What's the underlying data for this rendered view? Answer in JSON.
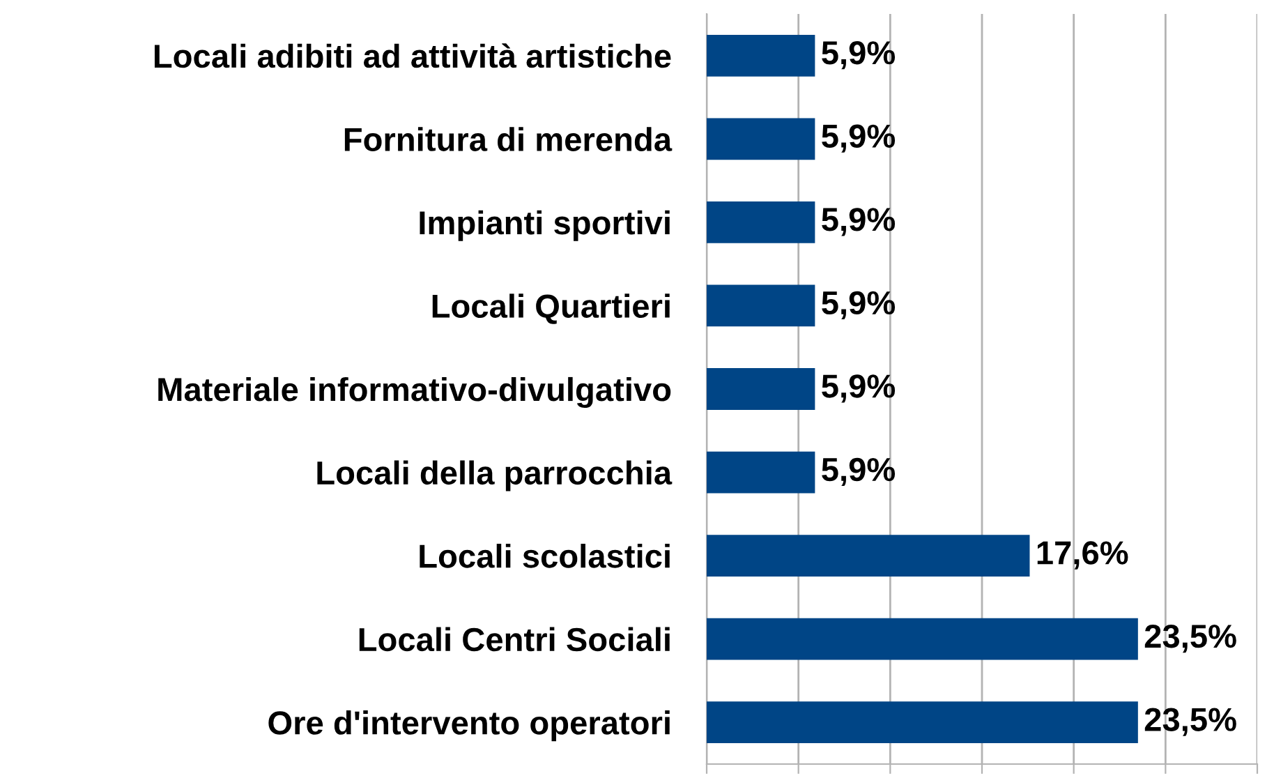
{
  "chart_data": {
    "type": "bar",
    "orientation": "horizontal",
    "categories": [
      "Locali adibiti ad attività artistiche",
      "Fornitura di merenda",
      "Impianti sportivi",
      "Locali Quartieri",
      "Materiale informativo-divulgativo",
      "Locali della parrocchia",
      "Locali scolastici",
      "Locali Centri Sociali",
      "Ore d'intervento operatori"
    ],
    "values": [
      5.9,
      5.9,
      5.9,
      5.9,
      5.9,
      5.9,
      17.6,
      23.5,
      23.5
    ],
    "value_labels": [
      "5,9%",
      "5,9%",
      "5,9%",
      "5,9%",
      "5,9%",
      "5,9%",
      "17,6%",
      "23,5%",
      "23,5%"
    ],
    "color": "#004586",
    "xlim": [
      0,
      30
    ],
    "xticks": [
      {
        "value": 0,
        "label": null
      },
      {
        "value": 5,
        "label": null
      },
      {
        "value": 10,
        "label": null
      },
      {
        "value": 15,
        "label": null
      },
      {
        "value": 20,
        "label": null
      },
      {
        "value": 25,
        "label": null
      },
      {
        "value": 30,
        "label": null
      }
    ],
    "grid": "x",
    "tick_labels": "y"
  }
}
